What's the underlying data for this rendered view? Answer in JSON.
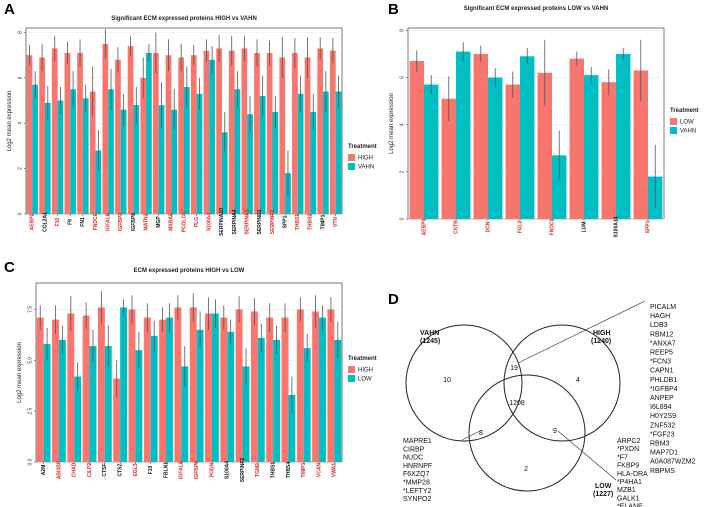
{
  "colors": {
    "c1": "#F8766D",
    "c2": "#00BFC4",
    "red_label": "#E8211C",
    "black_label": "#111111",
    "grid": "#EBEBEB",
    "error": "#555555"
  },
  "panels": {
    "A": "A",
    "B": "B",
    "C": "C",
    "D": "D"
  },
  "chart_data": [
    {
      "type": "bar",
      "id": "A",
      "title": "Significant ECM expressed proteins HIGH vs VAHN",
      "ylabel": "Log2 mean expression",
      "xlabel": "",
      "ylim": [
        0,
        8.2
      ],
      "yticks": [
        0,
        2,
        4,
        6,
        8
      ],
      "legend_title": "Treatment",
      "legend_position": "right",
      "categories": [
        "AEBP1",
        "COL2A1",
        "F10",
        "F9",
        "FN1",
        "FNDC1",
        "IGFALS",
        "IGFBP3",
        "IGFBP5",
        "MATN2",
        "MGP",
        "MXRA5",
        "PCOLCE",
        "PLG",
        "S100A4",
        "SERPINA10",
        "SERPINA4",
        "SERPINA5",
        "SERPIND1",
        "SERPINF2",
        "SPP1",
        "THBS1",
        "THBS2",
        "TIMP1",
        "VTN"
      ],
      "label_colors": [
        "red",
        "black",
        "red",
        "black",
        "black",
        "red",
        "red",
        "red",
        "black",
        "red",
        "black",
        "red",
        "red",
        "red",
        "red",
        "black",
        "black",
        "red",
        "black",
        "red",
        "black",
        "red",
        "red",
        "black",
        "red"
      ],
      "series": [
        {
          "name": "HIGH",
          "values": [
            7.0,
            6.9,
            7.3,
            7.1,
            7.1,
            5.4,
            7.5,
            6.8,
            7.4,
            6.0,
            7.1,
            7.0,
            6.9,
            7.0,
            7.2,
            7.3,
            7.2,
            7.3,
            7.1,
            7.1,
            6.9,
            7.1,
            6.9,
            7.3,
            7.2
          ],
          "errors": [
            0.45,
            0.6,
            0.55,
            0.5,
            0.6,
            1.1,
            0.65,
            0.55,
            0.45,
            0.9,
            0.9,
            0.7,
            0.6,
            0.45,
            0.5,
            0.6,
            0.65,
            0.55,
            0.6,
            0.55,
            0.9,
            0.65,
            0.9,
            0.5,
            0.55
          ]
        },
        {
          "name": "VAHN",
          "values": [
            5.7,
            4.9,
            5.0,
            5.5,
            5.1,
            2.8,
            5.5,
            4.6,
            4.8,
            7.1,
            4.8,
            4.6,
            5.6,
            5.3,
            6.8,
            3.6,
            5.5,
            4.4,
            5.2,
            4.5,
            1.8,
            5.3,
            4.5,
            5.4,
            5.4
          ],
          "errors": [
            0.6,
            0.75,
            0.6,
            0.8,
            0.6,
            0.9,
            0.9,
            0.7,
            0.8,
            0.4,
            1.0,
            0.9,
            0.9,
            0.7,
            0.6,
            0.9,
            0.8,
            0.8,
            0.9,
            0.7,
            1.0,
            0.8,
            0.8,
            0.9,
            0.7
          ]
        }
      ]
    },
    {
      "type": "bar",
      "id": "B",
      "title": "Significant ECM expressed proteins LOW vs VAHN",
      "ylabel": "Log2 mean expression",
      "xlabel": "",
      "ylim": [
        0,
        8.1
      ],
      "yticks": [
        0,
        2,
        4,
        6,
        8
      ],
      "legend_title": "Treatment",
      "legend_position": "right",
      "categories": [
        "AEBP1",
        "CSTB",
        "DCN",
        "FGL2",
        "FNDC1",
        "LUM",
        "S100A13",
        "SPP1"
      ],
      "label_colors": [
        "red",
        "red",
        "red",
        "red",
        "red",
        "black",
        "black",
        "red"
      ],
      "series": [
        {
          "name": "LOW",
          "values": [
            6.7,
            5.1,
            7.0,
            5.7,
            6.2,
            6.8,
            5.8,
            6.3
          ],
          "errors": [
            0.45,
            0.95,
            0.35,
            0.55,
            1.4,
            0.3,
            0.55,
            1.3
          ]
        },
        {
          "name": "VAHN",
          "values": [
            5.7,
            7.1,
            6.0,
            6.9,
            2.7,
            6.1,
            7.0,
            1.8
          ],
          "errors": [
            0.4,
            0.4,
            0.4,
            0.35,
            1.05,
            0.35,
            0.25,
            1.35
          ]
        }
      ]
    },
    {
      "type": "bar",
      "id": "C",
      "title": "ECM expressed proteins HIGH vs LOW",
      "ylabel": "Log2 mean expression",
      "xlabel": "",
      "ylim": [
        0,
        8.8
      ],
      "yticks": [
        0,
        2.5,
        5,
        7.5
      ],
      "ytick_labels": [
        "0.0",
        "2.5",
        "5.0",
        "7.5"
      ],
      "legend_title": "Treatment",
      "legend_position": "right",
      "categories": [
        "A2M",
        "ABI3BP",
        "CHAD",
        "CILP2",
        "CTSF",
        "CTSZ",
        "EGL3",
        "F10",
        "FBLN1",
        "IGFALS",
        "IGFBP5",
        "PODN",
        "S100A4",
        "SERPINF2",
        "TGM2",
        "THBS1",
        "THBS4",
        "TIMP1",
        "VCAN",
        "VWA1"
      ],
      "label_colors": [
        "black",
        "red",
        "red",
        "red",
        "black",
        "black",
        "red",
        "black",
        "black",
        "red",
        "red",
        "red",
        "black",
        "black",
        "red",
        "black",
        "black",
        "red",
        "red",
        "red"
      ],
      "series": [
        {
          "name": "HIGH",
          "values": [
            7.1,
            7.0,
            7.3,
            7.2,
            7.6,
            4.1,
            7.5,
            7.1,
            7.0,
            7.6,
            7.6,
            7.3,
            7.1,
            7.5,
            7.4,
            7.1,
            7.1,
            7.5,
            7.4,
            7.5
          ],
          "errors": [
            0.6,
            0.7,
            0.85,
            0.65,
            0.8,
            0.9,
            0.7,
            0.7,
            0.6,
            0.6,
            0.7,
            0.8,
            0.6,
            0.65,
            0.65,
            0.7,
            0.7,
            0.6,
            0.8,
            0.6
          ]
        },
        {
          "name": "LOW",
          "values": [
            5.8,
            6.0,
            4.2,
            5.7,
            5.7,
            7.6,
            5.5,
            6.2,
            7.1,
            4.7,
            6.5,
            7.3,
            6.4,
            4.7,
            6.1,
            6.0,
            3.3,
            5.6,
            7.1,
            6.0
          ],
          "errors": [
            0.8,
            0.7,
            0.7,
            0.8,
            1.0,
            0.4,
            0.9,
            0.75,
            0.7,
            1.0,
            0.9,
            0.7,
            0.6,
            0.9,
            0.7,
            0.7,
            0.9,
            0.7,
            0.6,
            0.9
          ]
        }
      ]
    }
  ],
  "venn": {
    "circles": [
      {
        "name": "VAHN",
        "count": "(1245)"
      },
      {
        "name": "HIGH",
        "count": "(1240)"
      },
      {
        "name": "LOW",
        "count": "(1227)"
      }
    ],
    "regions": {
      "vahn_only": "10",
      "vahn_high": "19",
      "high_only": "4",
      "all_three": "1208",
      "vahn_low": "8",
      "high_low": "9",
      "low_only": "2"
    },
    "list_vahn_high": [
      "PICALM",
      "HAGH",
      "LDB3",
      "RBM12",
      "*ANXA7",
      "REEP5",
      "*FCN3",
      "CAPN1",
      "PHLDB1",
      "*IGFBP4",
      "ANPEP",
      "I6L894",
      "H0Y2S9",
      "ZNF532",
      "*FGF23",
      "RBM3",
      "MAP7D1",
      "A0A087WZM2",
      "RBPMS"
    ],
    "list_vahn_low": [
      "MAPRE1",
      "CIRBP",
      "NUDC",
      "HNRNPF",
      "F6XZQ7",
      "*MMP28",
      "*LEFTY2",
      "SYNPO2"
    ],
    "list_high_low": [
      "ARPC2",
      "*PXDN",
      "*F7",
      "FKBP9",
      "HLA-DRA",
      "*P4HA1",
      "MZB1",
      "GALK1",
      "*ELANE"
    ]
  }
}
